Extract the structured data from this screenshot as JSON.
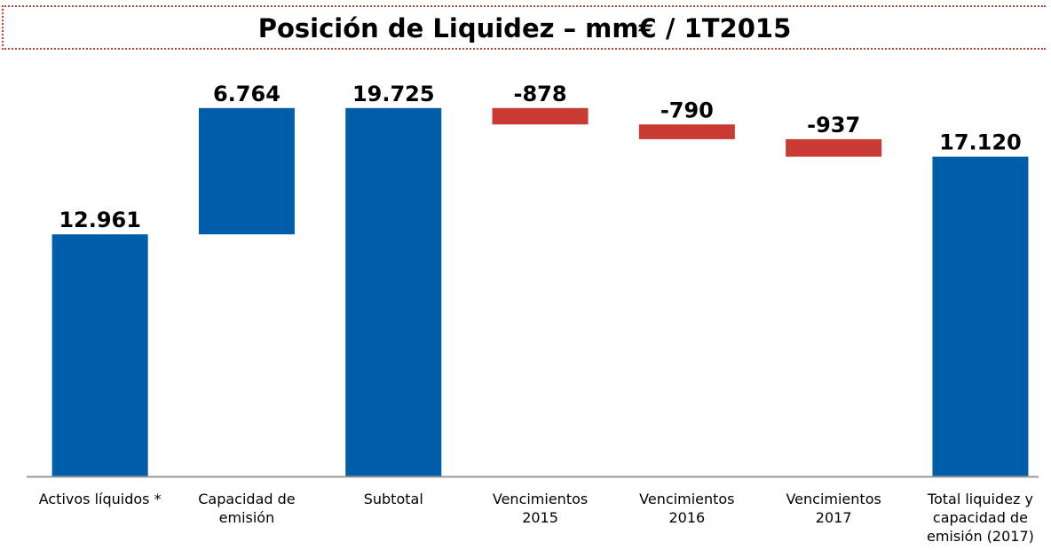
{
  "chart_data": {
    "type": "waterfall",
    "title": "Posición de Liquidez – mm€ / 1T2015",
    "categories": [
      "Activos líquidos *",
      "Capacidad de emisión",
      "Subtotal",
      "Vencimientos 2015",
      "Vencimientos 2016",
      "Vencimientos 2017",
      "Total liquidez y capacidad de emisión (2017)"
    ],
    "values": [
      12961,
      6764,
      19725,
      -878,
      -790,
      -937,
      17120
    ],
    "value_labels": [
      "12.961",
      "6.764",
      "19.725",
      "-878",
      "-790",
      "-937",
      "17.120"
    ],
    "color": "#005ea8",
    "negative_color": "#c73b32",
    "ylim": [
      0,
      20000
    ]
  }
}
